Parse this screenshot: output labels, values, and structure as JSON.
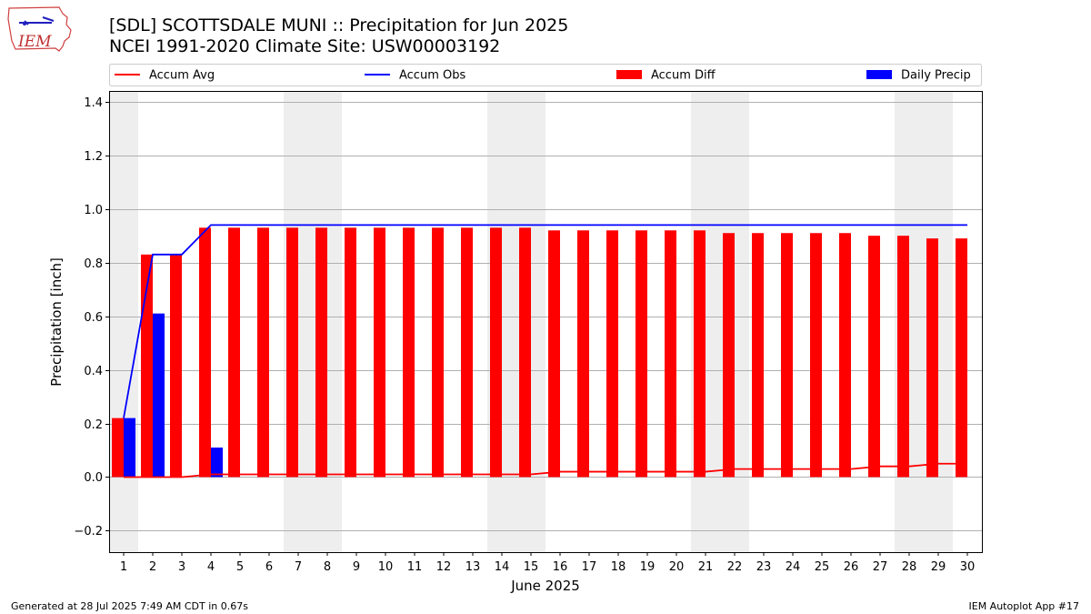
{
  "header": {
    "title_line1": "[SDL] SCOTTSDALE MUNI :: Precipitation for Jun 2025",
    "title_line2": "NCEI 1991-2020 Climate Site: USW00003192",
    "logo_text": "IEM"
  },
  "footer": {
    "left": "Generated at 28 Jul 2025 7:49 AM CDT in 0.67s",
    "right": "IEM Autoplot App #17"
  },
  "colors": {
    "accum_avg": "#ff0000",
    "accum_obs": "#0000ff",
    "accum_diff": "#ff0000",
    "daily_precip": "#0000ff",
    "weekend_band": "#eeeeee",
    "grid": "#b0b0b0"
  },
  "chart_data": {
    "type": "bar",
    "xlabel": "June 2025",
    "ylabel": "Precipitation [inch]",
    "ylim": [
      -0.28,
      1.44
    ],
    "yticks": [
      -0.2,
      0.0,
      0.2,
      0.4,
      0.6,
      0.8,
      1.0,
      1.2,
      1.4
    ],
    "ytick_labels": [
      "−0.2",
      "0.0",
      "0.2",
      "0.4",
      "0.6",
      "0.8",
      "1.0",
      "1.2",
      "1.4"
    ],
    "x": [
      1,
      2,
      3,
      4,
      5,
      6,
      7,
      8,
      9,
      10,
      11,
      12,
      13,
      14,
      15,
      16,
      17,
      18,
      19,
      20,
      21,
      22,
      23,
      24,
      25,
      26,
      27,
      28,
      29,
      30
    ],
    "xtick_labels": [
      "1",
      "2",
      "3",
      "4",
      "5",
      "6",
      "7",
      "8",
      "9",
      "10",
      "11",
      "12",
      "13",
      "14",
      "15",
      "16",
      "17",
      "18",
      "19",
      "20",
      "21",
      "22",
      "23",
      "24",
      "25",
      "26",
      "27",
      "28",
      "29",
      "30"
    ],
    "grid": "y",
    "legend_position": "top",
    "weekend_days": [
      1,
      7,
      8,
      14,
      15,
      21,
      22,
      28,
      29
    ],
    "series": [
      {
        "name": "Accum Avg",
        "kind": "line",
        "values": [
          0.0,
          0.0,
          0.0,
          0.01,
          0.01,
          0.01,
          0.01,
          0.01,
          0.01,
          0.01,
          0.01,
          0.01,
          0.01,
          0.01,
          0.01,
          0.02,
          0.02,
          0.02,
          0.02,
          0.02,
          0.02,
          0.03,
          0.03,
          0.03,
          0.03,
          0.03,
          0.04,
          0.04,
          0.05,
          0.05
        ]
      },
      {
        "name": "Accum Obs",
        "kind": "line",
        "values": [
          0.22,
          0.83,
          0.83,
          0.94,
          0.94,
          0.94,
          0.94,
          0.94,
          0.94,
          0.94,
          0.94,
          0.94,
          0.94,
          0.94,
          0.94,
          0.94,
          0.94,
          0.94,
          0.94,
          0.94,
          0.94,
          0.94,
          0.94,
          0.94,
          0.94,
          0.94,
          0.94,
          0.94,
          0.94,
          0.94
        ]
      },
      {
        "name": "Accum Diff",
        "kind": "bar",
        "values": [
          0.22,
          0.83,
          0.83,
          0.93,
          0.93,
          0.93,
          0.93,
          0.93,
          0.93,
          0.93,
          0.93,
          0.93,
          0.93,
          0.93,
          0.93,
          0.92,
          0.92,
          0.92,
          0.92,
          0.92,
          0.92,
          0.91,
          0.91,
          0.91,
          0.91,
          0.91,
          0.9,
          0.9,
          0.89,
          0.89
        ]
      },
      {
        "name": "Daily Precip",
        "kind": "bar",
        "values": [
          0.22,
          0.61,
          0.0,
          0.11,
          0.0,
          0.0,
          0.0,
          0.0,
          0.0,
          0.0,
          0.0,
          0.0,
          0.0,
          0.0,
          0.0,
          0.0,
          0.0,
          0.0,
          0.0,
          0.0,
          0.0,
          0.0,
          0.0,
          0.0,
          0.0,
          0.0,
          0.0,
          0.0,
          0.0,
          0.0
        ]
      }
    ]
  }
}
